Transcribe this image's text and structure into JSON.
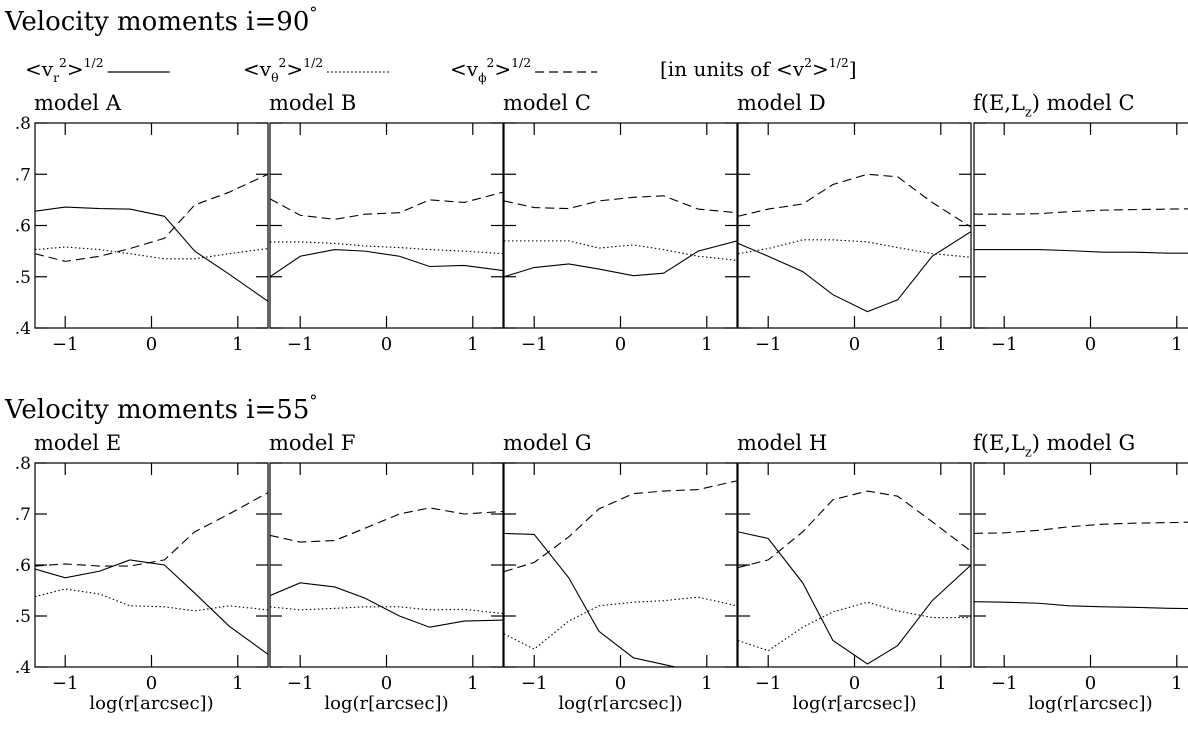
{
  "headings": [
    [
      {
        "text": "Velocity moments i=90"
      },
      {
        "text": "°",
        "shift": "sup"
      }
    ],
    [
      {
        "text": "Velocity moments i=55"
      },
      {
        "text": "°",
        "shift": "sup"
      }
    ]
  ],
  "legend": [
    {
      "style": "solid",
      "label": [
        {
          "text": "<v"
        },
        {
          "text": "r",
          "shift": "sub"
        },
        {
          "text": "2",
          "shift": "sup"
        },
        {
          "text": ">"
        },
        {
          "text": "1/2",
          "shift": "sup"
        }
      ]
    },
    {
      "style": "dotted",
      "label": [
        {
          "text": "<v"
        },
        {
          "text": "θ",
          "shift": "sub"
        },
        {
          "text": "2",
          "shift": "sup"
        },
        {
          "text": ">"
        },
        {
          "text": "1/2",
          "shift": "sup"
        }
      ]
    },
    {
      "style": "dashed",
      "label": [
        {
          "text": "<v"
        },
        {
          "text": "ϕ",
          "shift": "sub"
        },
        {
          "text": "2",
          "shift": "sup"
        },
        {
          "text": ">"
        },
        {
          "text": "1/2",
          "shift": "sup"
        }
      ]
    }
  ],
  "note": [
    {
      "text": "[in units of <v"
    },
    {
      "text": "2",
      "shift": "sup"
    },
    {
      "text": ">"
    },
    {
      "text": "1/2",
      "shift": "sup"
    },
    {
      "text": "]"
    }
  ],
  "chart_data": [
    {
      "type": "line",
      "title": [
        {
          "text": "model A"
        }
      ],
      "show_ytick_labels": true,
      "x": [
        -1.35,
        -1,
        -0.6,
        -0.25,
        0.15,
        0.5,
        0.9,
        1.35
      ],
      "xlim": [
        -1.35,
        1.35
      ],
      "ylim": [
        0.4,
        0.8
      ],
      "xticks": [
        {
          "value": -1,
          "label": "−1"
        },
        0,
        1
      ],
      "yticks": [
        {
          "value": 0.4,
          "label": ".4"
        },
        {
          "value": 0.5,
          "label": ".5"
        },
        {
          "value": 0.6,
          "label": ".6"
        },
        {
          "value": 0.7,
          "label": ".7"
        },
        {
          "value": 0.8,
          "label": ".8"
        }
      ],
      "series": [
        {
          "style": "solid",
          "color": "#000",
          "values": [
            0.628,
            0.636,
            0.633,
            0.632,
            0.618,
            0.55,
            0.505,
            0.452
          ]
        },
        {
          "style": "dotted",
          "color": "#000",
          "values": [
            0.553,
            0.558,
            0.553,
            0.545,
            0.535,
            0.535,
            0.545,
            0.555
          ]
        },
        {
          "style": "dashed",
          "color": "#000",
          "values": [
            0.545,
            0.53,
            0.54,
            0.555,
            0.575,
            0.64,
            0.665,
            0.7
          ]
        }
      ]
    },
    {
      "type": "line",
      "title": [
        {
          "text": "model B"
        }
      ],
      "show_ytick_labels": false,
      "x": [
        -1.35,
        -1,
        -0.6,
        -0.25,
        0.15,
        0.5,
        0.9,
        1.35
      ],
      "xlim": [
        -1.35,
        1.35
      ],
      "ylim": [
        0.4,
        0.8
      ],
      "xticks": [
        {
          "value": -1,
          "label": "−1"
        },
        0,
        1
      ],
      "yticks": [
        {
          "value": 0.4,
          "label": ".4"
        },
        {
          "value": 0.5,
          "label": ".5"
        },
        {
          "value": 0.6,
          "label": ".6"
        },
        {
          "value": 0.7,
          "label": ".7"
        },
        {
          "value": 0.8,
          "label": ".8"
        }
      ],
      "series": [
        {
          "style": "solid",
          "color": "#000",
          "values": [
            0.5,
            0.54,
            0.553,
            0.55,
            0.54,
            0.52,
            0.522,
            0.512
          ]
        },
        {
          "style": "dotted",
          "color": "#000",
          "values": [
            0.568,
            0.568,
            0.565,
            0.56,
            0.557,
            0.553,
            0.55,
            0.545
          ]
        },
        {
          "style": "dashed",
          "color": "#000",
          "values": [
            0.652,
            0.62,
            0.612,
            0.622,
            0.625,
            0.65,
            0.645,
            0.665
          ]
        }
      ]
    },
    {
      "type": "line",
      "title": [
        {
          "text": "model C"
        }
      ],
      "show_ytick_labels": false,
      "x": [
        -1.35,
        -1,
        -0.6,
        -0.25,
        0.15,
        0.5,
        0.9,
        1.35
      ],
      "xlim": [
        -1.35,
        1.35
      ],
      "ylim": [
        0.4,
        0.8
      ],
      "xticks": [
        {
          "value": -1,
          "label": "−1"
        },
        0,
        1
      ],
      "yticks": [
        {
          "value": 0.4,
          "label": ".4"
        },
        {
          "value": 0.5,
          "label": ".5"
        },
        {
          "value": 0.6,
          "label": ".6"
        },
        {
          "value": 0.7,
          "label": ".7"
        },
        {
          "value": 0.8,
          "label": ".8"
        }
      ],
      "series": [
        {
          "style": "solid",
          "color": "#000",
          "values": [
            0.5,
            0.518,
            0.525,
            0.515,
            0.502,
            0.507,
            0.55,
            0.57
          ]
        },
        {
          "style": "dotted",
          "color": "#000",
          "values": [
            0.57,
            0.57,
            0.57,
            0.556,
            0.562,
            0.553,
            0.54,
            0.532
          ]
        },
        {
          "style": "dashed",
          "color": "#000",
          "values": [
            0.648,
            0.635,
            0.633,
            0.648,
            0.655,
            0.658,
            0.632,
            0.625
          ]
        }
      ]
    },
    {
      "type": "line",
      "title": [
        {
          "text": "model D"
        }
      ],
      "show_ytick_labels": false,
      "x": [
        -1.35,
        -1,
        -0.6,
        -0.25,
        0.15,
        0.5,
        0.9,
        1.35
      ],
      "xlim": [
        -1.35,
        1.35
      ],
      "ylim": [
        0.4,
        0.8
      ],
      "xticks": [
        {
          "value": -1,
          "label": "−1"
        },
        0,
        1
      ],
      "yticks": [
        {
          "value": 0.4,
          "label": ".4"
        },
        {
          "value": 0.5,
          "label": ".5"
        },
        {
          "value": 0.6,
          "label": ".6"
        },
        {
          "value": 0.7,
          "label": ".7"
        },
        {
          "value": 0.8,
          "label": ".8"
        }
      ],
      "series": [
        {
          "style": "solid",
          "color": "#000",
          "values": [
            0.565,
            0.54,
            0.51,
            0.465,
            0.432,
            0.455,
            0.54,
            0.588
          ]
        },
        {
          "style": "dotted",
          "color": "#000",
          "values": [
            0.545,
            0.555,
            0.572,
            0.572,
            0.568,
            0.557,
            0.545,
            0.538
          ]
        },
        {
          "style": "dashed",
          "color": "#000",
          "values": [
            0.618,
            0.632,
            0.642,
            0.68,
            0.7,
            0.695,
            0.645,
            0.597
          ]
        }
      ]
    },
    {
      "type": "line",
      "title": [
        {
          "text": "f(E,L"
        },
        {
          "text": "z",
          "shift": "sub"
        },
        {
          "text": ") model C"
        }
      ],
      "show_ytick_labels": false,
      "x": [
        -1.35,
        -1,
        -0.6,
        -0.25,
        0.15,
        0.5,
        0.9,
        1.35
      ],
      "xlim": [
        -1.35,
        1.35
      ],
      "ylim": [
        0.4,
        0.8
      ],
      "xticks": [
        {
          "value": -1,
          "label": "−1"
        },
        0,
        1
      ],
      "yticks": [
        {
          "value": 0.4,
          "label": ".4"
        },
        {
          "value": 0.5,
          "label": ".5"
        },
        {
          "value": 0.6,
          "label": ".6"
        },
        {
          "value": 0.7,
          "label": ".7"
        },
        {
          "value": 0.8,
          "label": ".8"
        }
      ],
      "series": [
        {
          "style": "solid",
          "color": "#000",
          "values": [
            0.553,
            0.553,
            0.553,
            0.551,
            0.548,
            0.548,
            0.546,
            0.546
          ]
        },
        {
          "style": "dashed",
          "color": "#000",
          "values": [
            0.622,
            0.622,
            0.623,
            0.627,
            0.63,
            0.631,
            0.632,
            0.633
          ]
        }
      ]
    },
    {
      "type": "line",
      "title": [
        {
          "text": "model E"
        }
      ],
      "show_ytick_labels": true,
      "xlabel": "log(r[arcsec])",
      "x": [
        -1.35,
        -1,
        -0.6,
        -0.25,
        0.15,
        0.5,
        0.9,
        1.35
      ],
      "xlim": [
        -1.35,
        1.35
      ],
      "ylim": [
        0.4,
        0.8
      ],
      "xticks": [
        {
          "value": -1,
          "label": "−1"
        },
        0,
        1
      ],
      "yticks": [
        {
          "value": 0.4,
          "label": ".4"
        },
        {
          "value": 0.5,
          "label": ".5"
        },
        {
          "value": 0.6,
          "label": ".6"
        },
        {
          "value": 0.7,
          "label": ".7"
        },
        {
          "value": 0.8,
          "label": ".8"
        }
      ],
      "series": [
        {
          "style": "solid",
          "color": "#000",
          "values": [
            0.592,
            0.575,
            0.588,
            0.61,
            0.6,
            0.545,
            0.48,
            0.425
          ]
        },
        {
          "style": "dotted",
          "color": "#000",
          "values": [
            0.538,
            0.553,
            0.543,
            0.52,
            0.518,
            0.51,
            0.52,
            0.512
          ]
        },
        {
          "style": "dashed",
          "color": "#000",
          "values": [
            0.598,
            0.602,
            0.598,
            0.598,
            0.61,
            0.665,
            0.7,
            0.742
          ]
        }
      ]
    },
    {
      "type": "line",
      "title": [
        {
          "text": "model F"
        }
      ],
      "show_ytick_labels": false,
      "xlabel": "log(r[arcsec])",
      "x": [
        -1.35,
        -1,
        -0.6,
        -0.25,
        0.15,
        0.5,
        0.9,
        1.35
      ],
      "xlim": [
        -1.35,
        1.35
      ],
      "ylim": [
        0.4,
        0.8
      ],
      "xticks": [
        {
          "value": -1,
          "label": "−1"
        },
        0,
        1
      ],
      "yticks": [
        {
          "value": 0.4,
          "label": ".4"
        },
        {
          "value": 0.5,
          "label": ".5"
        },
        {
          "value": 0.6,
          "label": ".6"
        },
        {
          "value": 0.7,
          "label": ".7"
        },
        {
          "value": 0.8,
          "label": ".8"
        }
      ],
      "series": [
        {
          "style": "solid",
          "color": "#000",
          "values": [
            0.54,
            0.565,
            0.557,
            0.535,
            0.5,
            0.478,
            0.49,
            0.492
          ]
        },
        {
          "style": "dotted",
          "color": "#000",
          "values": [
            0.518,
            0.512,
            0.515,
            0.518,
            0.518,
            0.512,
            0.513,
            0.505
          ]
        },
        {
          "style": "dashed",
          "color": "#000",
          "values": [
            0.658,
            0.645,
            0.648,
            0.672,
            0.7,
            0.712,
            0.7,
            0.705
          ]
        }
      ]
    },
    {
      "type": "line",
      "title": [
        {
          "text": "model G"
        }
      ],
      "show_ytick_labels": false,
      "xlabel": "log(r[arcsec])",
      "x": [
        -1.35,
        -1,
        -0.6,
        -0.25,
        0.15,
        0.5,
        0.9,
        1.35
      ],
      "xlim": [
        -1.35,
        1.35
      ],
      "ylim": [
        0.4,
        0.8
      ],
      "xticks": [
        {
          "value": -1,
          "label": "−1"
        },
        0,
        1
      ],
      "yticks": [
        {
          "value": 0.4,
          "label": ".4"
        },
        {
          "value": 0.5,
          "label": ".5"
        },
        {
          "value": 0.6,
          "label": ".6"
        },
        {
          "value": 0.7,
          "label": ".7"
        },
        {
          "value": 0.8,
          "label": ".8"
        }
      ],
      "series": [
        {
          "style": "solid",
          "color": "#000",
          "values": [
            0.662,
            0.66,
            0.575,
            0.47,
            0.418,
            0.405,
            0.39,
            0.38
          ]
        },
        {
          "style": "dotted",
          "color": "#000",
          "values": [
            0.465,
            0.435,
            0.49,
            0.52,
            0.527,
            0.53,
            0.537,
            0.52
          ]
        },
        {
          "style": "dashed",
          "color": "#000",
          "values": [
            0.587,
            0.605,
            0.655,
            0.71,
            0.74,
            0.745,
            0.748,
            0.765
          ]
        }
      ]
    },
    {
      "type": "line",
      "title": [
        {
          "text": "model H"
        }
      ],
      "show_ytick_labels": false,
      "xlabel": "log(r[arcsec])",
      "x": [
        -1.35,
        -1,
        -0.6,
        -0.25,
        0.15,
        0.5,
        0.9,
        1.35
      ],
      "xlim": [
        -1.35,
        1.35
      ],
      "ylim": [
        0.4,
        0.8
      ],
      "xticks": [
        {
          "value": -1,
          "label": "−1"
        },
        0,
        1
      ],
      "yticks": [
        {
          "value": 0.4,
          "label": ".4"
        },
        {
          "value": 0.5,
          "label": ".5"
        },
        {
          "value": 0.6,
          "label": ".6"
        },
        {
          "value": 0.7,
          "label": ".7"
        },
        {
          "value": 0.8,
          "label": ".8"
        }
      ],
      "series": [
        {
          "style": "solid",
          "color": "#000",
          "values": [
            0.665,
            0.652,
            0.565,
            0.452,
            0.406,
            0.442,
            0.53,
            0.6
          ]
        },
        {
          "style": "dotted",
          "color": "#000",
          "values": [
            0.452,
            0.432,
            0.478,
            0.508,
            0.527,
            0.51,
            0.497,
            0.497
          ]
        },
        {
          "style": "dashed",
          "color": "#000",
          "values": [
            0.595,
            0.61,
            0.665,
            0.728,
            0.745,
            0.735,
            0.685,
            0.627
          ]
        }
      ]
    },
    {
      "type": "line",
      "title": [
        {
          "text": "f(E,L"
        },
        {
          "text": "z",
          "shift": "sub"
        },
        {
          "text": ") model G"
        }
      ],
      "show_ytick_labels": false,
      "xlabel": "log(r[arcsec])",
      "x": [
        -1.35,
        -1,
        -0.6,
        -0.25,
        0.15,
        0.5,
        0.9,
        1.35
      ],
      "xlim": [
        -1.35,
        1.35
      ],
      "ylim": [
        0.4,
        0.8
      ],
      "xticks": [
        {
          "value": -1,
          "label": "−1"
        },
        0,
        1
      ],
      "yticks": [
        {
          "value": 0.4,
          "label": ".4"
        },
        {
          "value": 0.5,
          "label": ".5"
        },
        {
          "value": 0.6,
          "label": ".6"
        },
        {
          "value": 0.7,
          "label": ".7"
        },
        {
          "value": 0.8,
          "label": ".8"
        }
      ],
      "series": [
        {
          "style": "solid",
          "color": "#000",
          "values": [
            0.528,
            0.527,
            0.525,
            0.52,
            0.518,
            0.517,
            0.515,
            0.514
          ]
        },
        {
          "style": "dashed",
          "color": "#000",
          "values": [
            0.662,
            0.663,
            0.668,
            0.675,
            0.68,
            0.682,
            0.683,
            0.685
          ]
        }
      ]
    }
  ]
}
